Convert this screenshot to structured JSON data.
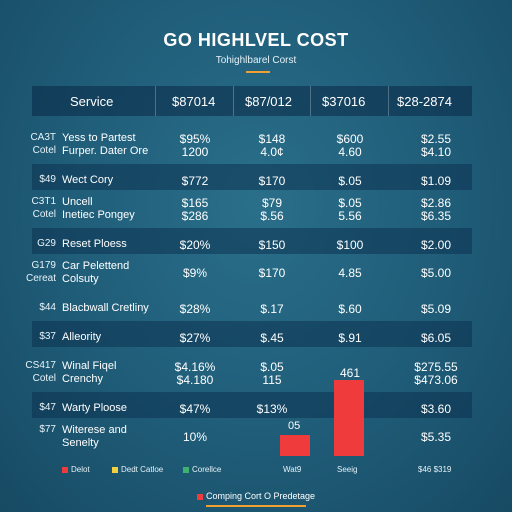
{
  "chart_data": {
    "type": "table",
    "title": "GO HIGHLVEL COST",
    "subtitle": "Tohighlbarel Corst",
    "columns": [
      "Service",
      "$87014",
      "$87/012",
      "$37016",
      "$28-2874"
    ],
    "rows": [
      {
        "code": [
          "CA3T",
          "Cotel"
        ],
        "name": [
          "Yess to Partest",
          "Furper. Dater Ore"
        ],
        "v1": [
          "$95%",
          "1200"
        ],
        "v2": [
          "$148",
          "4.0¢"
        ],
        "v3": [
          "$600",
          "4.60"
        ],
        "v4": [
          "$2.55",
          "$4.10"
        ],
        "band": false
      },
      {
        "code": [
          "$49"
        ],
        "name": [
          "Wect Cory"
        ],
        "v1": [
          "$772"
        ],
        "v2": [
          "$170"
        ],
        "v3": [
          "$.05"
        ],
        "v4": [
          "$1.09"
        ],
        "band": true
      },
      {
        "code": [
          "C3T1",
          "Cotel"
        ],
        "name": [
          "Uncell",
          "Inetiec Pongey"
        ],
        "v1": [
          "$165",
          "$286"
        ],
        "v2": [
          "$79",
          "$.56"
        ],
        "v3": [
          "$.05",
          "5.56"
        ],
        "v4": [
          "$2.86",
          "$6.35"
        ],
        "band": false
      },
      {
        "code": [
          "G29"
        ],
        "name": [
          "Reset Ploess"
        ],
        "v1": [
          "$20%"
        ],
        "v2": [
          "$150"
        ],
        "v3": [
          "$100"
        ],
        "v4": [
          "$2.00"
        ],
        "band": true
      },
      {
        "code": [
          "G179",
          "Cereat"
        ],
        "name": [
          "Car Pelettend",
          "Colsuty"
        ],
        "v1": [
          "$9%"
        ],
        "v2": [
          "$170"
        ],
        "v3": [
          "4.85"
        ],
        "v4": [
          "$5.00"
        ],
        "band": false
      },
      {
        "code": [
          "$44"
        ],
        "name": [
          "Blacbwall Cretliny"
        ],
        "v1": [
          "$28%"
        ],
        "v2": [
          "$.17"
        ],
        "v3": [
          "$.60"
        ],
        "v4": [
          "$5.09"
        ],
        "band": false
      },
      {
        "code": [
          "$37"
        ],
        "name": [
          "Alleority"
        ],
        "v1": [
          "$27%"
        ],
        "v2": [
          "$.45"
        ],
        "v3": [
          "$.91"
        ],
        "v4": [
          "$6.05"
        ],
        "band": true
      },
      {
        "code": [
          "CS417",
          "Cotel"
        ],
        "name": [
          "Winal Fiqel",
          "Crenchy"
        ],
        "v1": [
          "$4.16%",
          "$4.180"
        ],
        "v2": [
          "$.05",
          "115"
        ],
        "v3": [
          "461"
        ],
        "v4": [
          "$275.55",
          "$473.06"
        ],
        "band": false
      },
      {
        "code": [
          "$47"
        ],
        "name": [
          "Warty Ploose"
        ],
        "v1": [
          "$47%"
        ],
        "v2": [
          "$13%"
        ],
        "v3": [
          ""
        ],
        "v4": [
          "$3.60"
        ],
        "band": true
      },
      {
        "code": [
          "$77"
        ],
        "name": [
          "Witerese and",
          "Senelty"
        ],
        "v1": [
          "10%"
        ],
        "v2": [
          ""
        ],
        "v3": [
          ""
        ],
        "v4": [
          "$5.35"
        ],
        "band": false
      }
    ],
    "bars": [
      {
        "label": "05",
        "value": 2.3
      },
      {
        "label": "",
        "value": 8.5
      }
    ],
    "bar_labels": [
      "Wat9",
      "Seeig"
    ],
    "legend": [
      {
        "label": "Delot",
        "color": "#ef3b3b"
      },
      {
        "label": "Dedt Catloe",
        "color": "#f4d03f"
      },
      {
        "label": "Corellce",
        "color": "#3cb371"
      }
    ],
    "corner_note": "$46 $319",
    "bottom_legend": {
      "label": "Comping Cort O Predetage",
      "color": "#ef3b3b"
    },
    "colors": {
      "bar": "#ef3b3b",
      "accent": "#f0a030"
    }
  }
}
